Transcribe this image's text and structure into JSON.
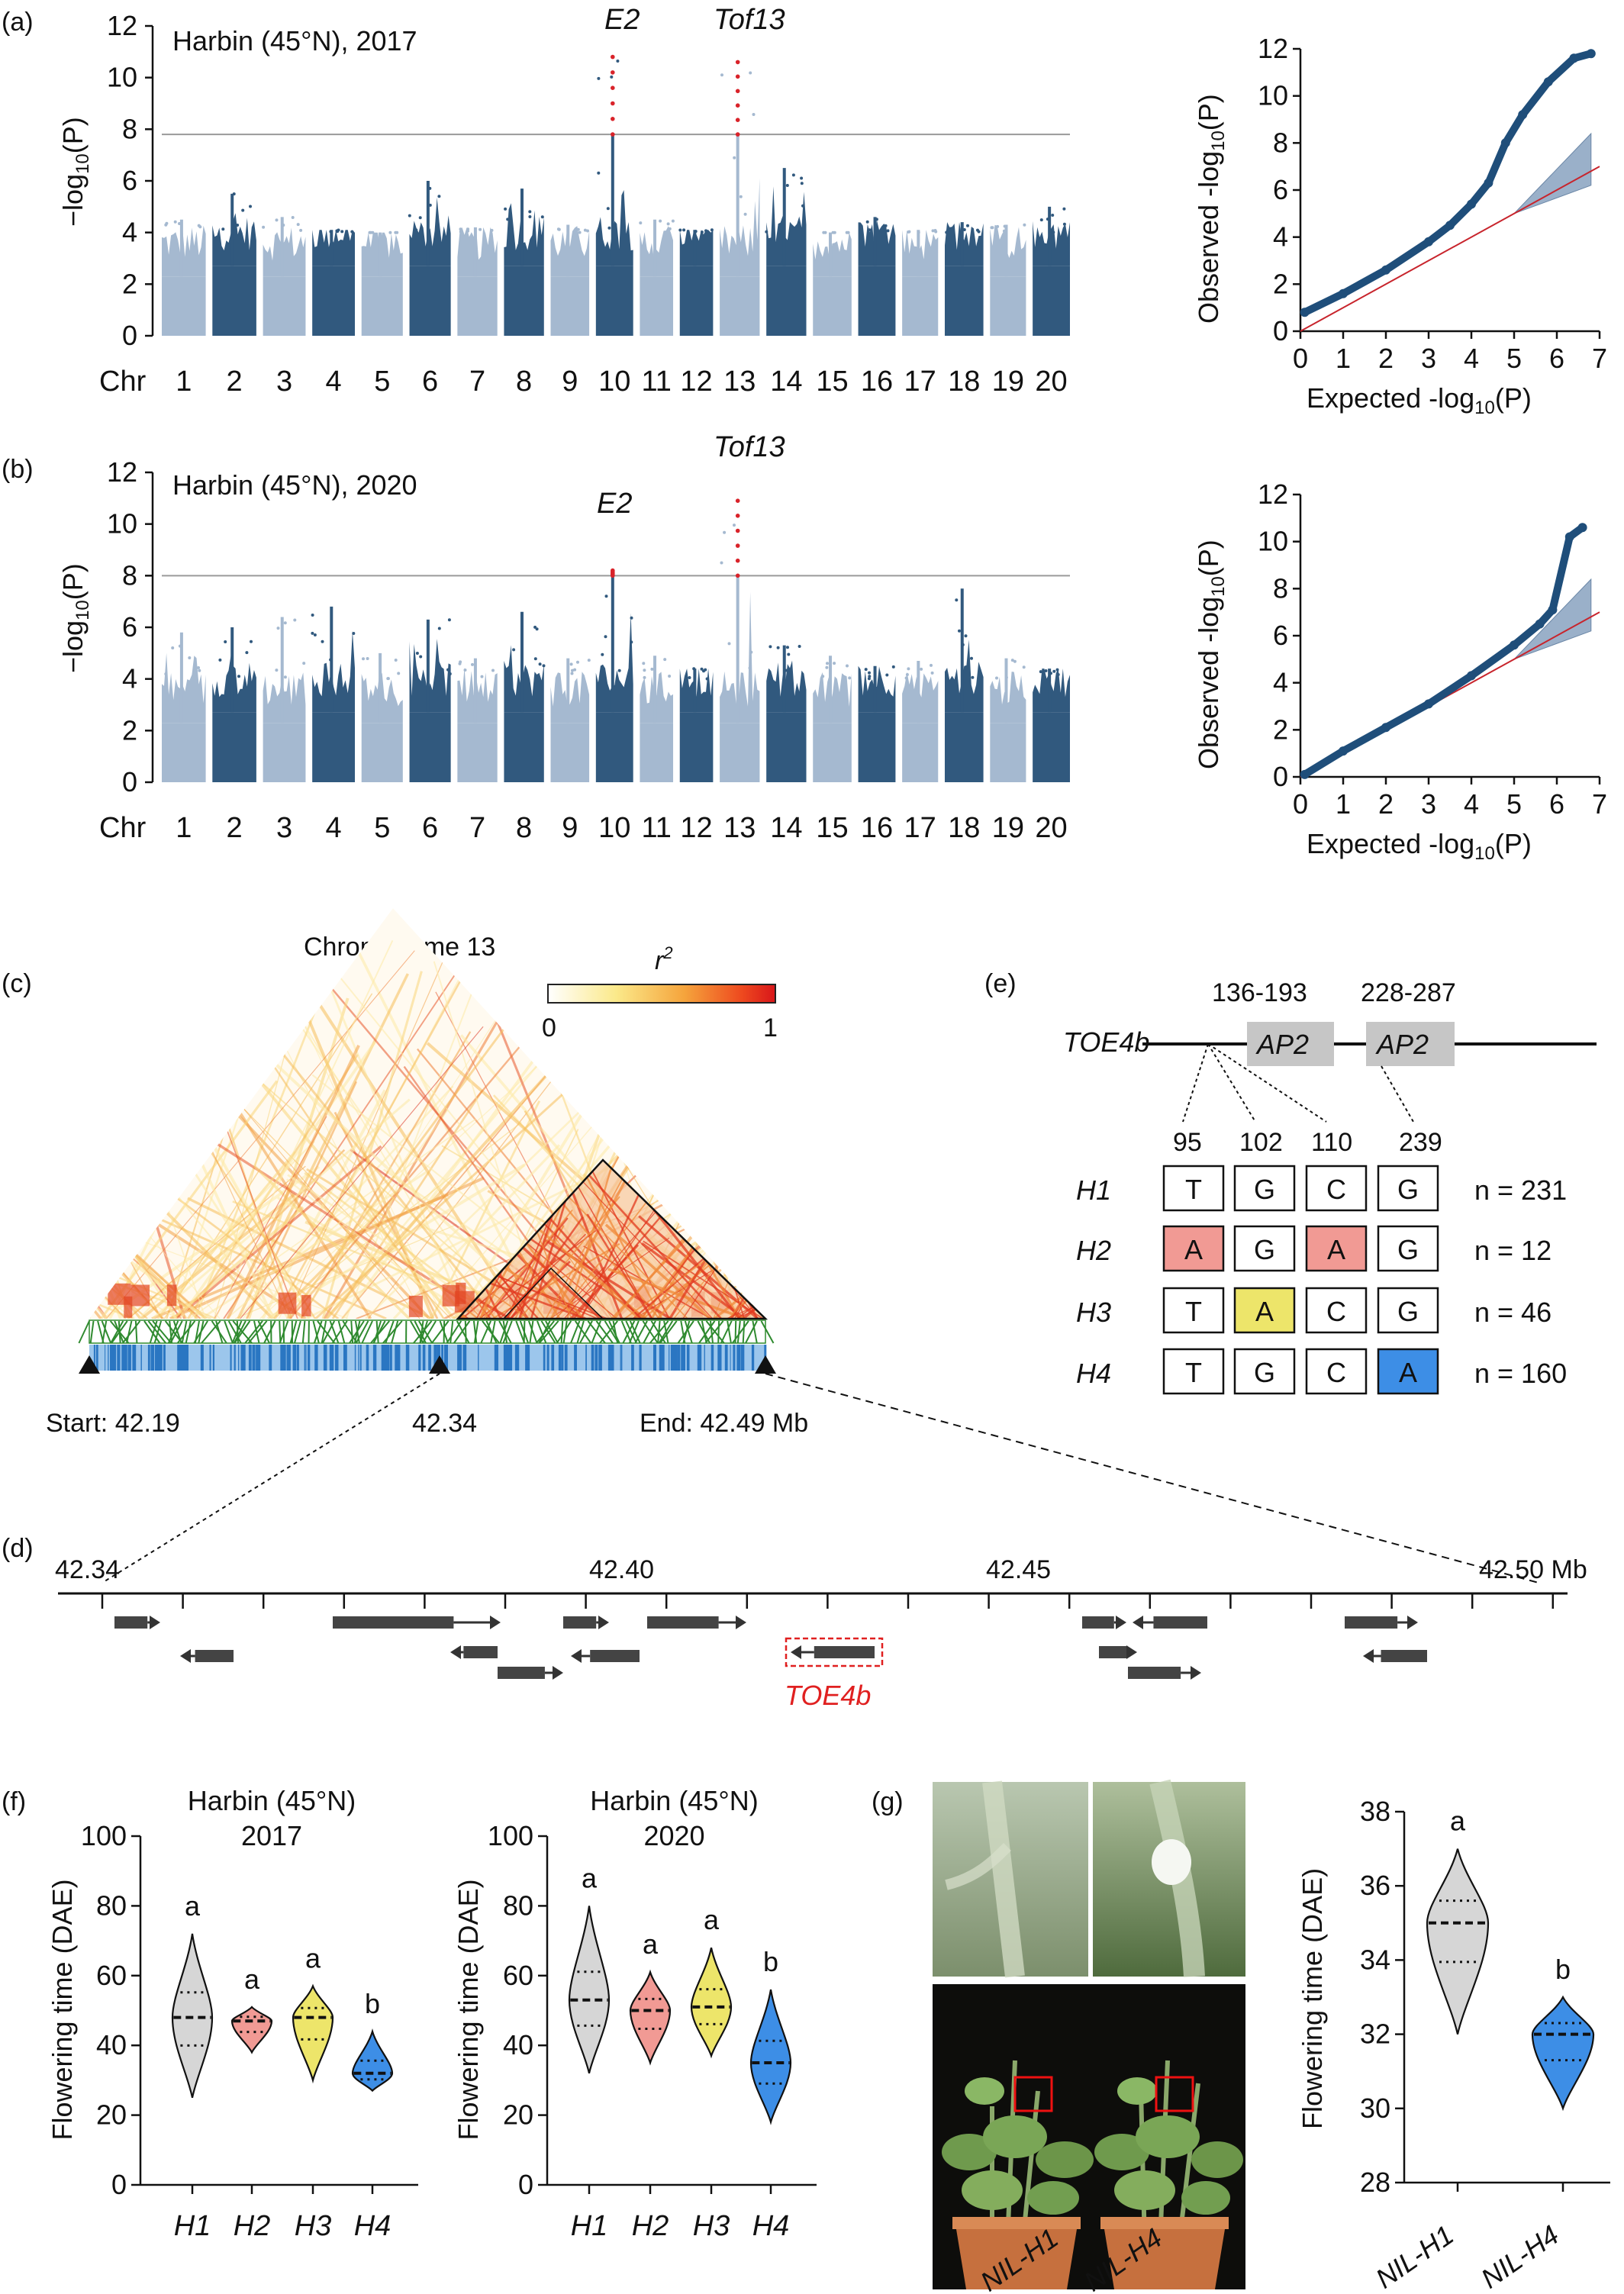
{
  "panels": {
    "a": {
      "label": "(a)",
      "title": "Harbin (45°N), 2017",
      "loci": [
        {
          "name": "E2",
          "chr": "10"
        },
        {
          "name": "Tof13",
          "chr": "13"
        }
      ],
      "threshold": 7.8,
      "chr_peaks": [
        4.5,
        5.5,
        4.6,
        4.1,
        4.0,
        6.0,
        4.2,
        5.7,
        4.3,
        10.8,
        4.5,
        4.1,
        10.6,
        6.5,
        4.0,
        4.6,
        4.1,
        4.4,
        4.3,
        5.0
      ]
    },
    "b": {
      "label": "(b)",
      "title": "Harbin (45°N), 2020",
      "loci": [
        {
          "name": "E2",
          "chr": "10"
        },
        {
          "name": "Tof13",
          "chr": "13"
        }
      ],
      "threshold": 8.0,
      "chr_peaks": [
        5.8,
        6.0,
        6.4,
        6.8,
        5.0,
        6.3,
        4.8,
        6.6,
        4.8,
        8.2,
        4.9,
        4.4,
        10.9,
        5.3,
        4.9,
        4.5,
        4.7,
        7.5,
        4.8,
        4.4
      ]
    },
    "manhattan_axes": {
      "ylabel_main": "−log",
      "ylabel_sub": "10",
      "ylabel_end": "(P)",
      "yticks": [
        "0",
        "2",
        "4",
        "6",
        "8",
        "10",
        "12"
      ],
      "chr_title": "Chr",
      "chromosomes": [
        "1",
        "2",
        "3",
        "4",
        "5",
        "6",
        "7",
        "8",
        "9",
        "10",
        "11",
        "12",
        "13",
        "14",
        "15",
        "16",
        "17",
        "18",
        "19",
        "20"
      ]
    },
    "qq_axes": {
      "ylabel": "Observed -log",
      "xlabel": "Expected -log",
      "sub": "10",
      "end": "(P)",
      "xticks": [
        "0",
        "1",
        "2",
        "3",
        "4",
        "5",
        "6",
        "7"
      ],
      "yticks": [
        "0",
        "2",
        "4",
        "6",
        "8",
        "10",
        "12"
      ]
    },
    "c": {
      "label": "(c)",
      "title": "Chromosome 13",
      "legend_title": "r",
      "legend_sup": "2",
      "legend_min": "0",
      "legend_max": "1",
      "start": "Start: 42.19",
      "middle": "42.34",
      "end": "End: 42.49 Mb"
    },
    "d": {
      "label": "(d)",
      "ticks": [
        "42.34",
        "42.40",
        "42.45",
        "42.50 Mb"
      ],
      "gene": "TOE4b"
    },
    "e": {
      "label": "(e)",
      "gene": "TOE4b",
      "domains": [
        {
          "name": "AP2",
          "range": "136-193"
        },
        {
          "name": "AP2",
          "range": "228-287"
        }
      ],
      "positions": [
        "95",
        "102",
        "110",
        "239"
      ],
      "haplotypes": [
        {
          "name": "H1",
          "alleles": [
            "T",
            "G",
            "C",
            "G"
          ],
          "count": "n = 231"
        },
        {
          "name": "H2",
          "alleles": [
            "A",
            "G",
            "A",
            "G"
          ],
          "count": "n = 12"
        },
        {
          "name": "H3",
          "alleles": [
            "T",
            "A",
            "C",
            "G"
          ],
          "count": "n = 46"
        },
        {
          "name": "H4",
          "alleles": [
            "T",
            "G",
            "C",
            "A"
          ],
          "count": "n = 160"
        }
      ]
    },
    "f": {
      "label": "(f)",
      "ylabel": "Flowering time (DAE)",
      "yticks": [
        "0",
        "20",
        "40",
        "60",
        "80",
        "100"
      ],
      "plots": [
        {
          "title1": "Harbin (45°N)",
          "title2": "2017",
          "groups": [
            {
              "name": "H1",
              "median": 48,
              "min": 25,
              "max": 72,
              "letter": "a"
            },
            {
              "name": "H2",
              "median": 47,
              "min": 38,
              "max": 51,
              "letter": "a"
            },
            {
              "name": "H3",
              "median": 48,
              "min": 30,
              "max": 57,
              "letter": "a"
            },
            {
              "name": "H4",
              "median": 32,
              "min": 27,
              "max": 44,
              "letter": "b"
            }
          ]
        },
        {
          "title1": "Harbin (45°N)",
          "title2": "2020",
          "groups": [
            {
              "name": "H1",
              "median": 53,
              "min": 32,
              "max": 80,
              "letter": "a"
            },
            {
              "name": "H2",
              "median": 50,
              "min": 35,
              "max": 61,
              "letter": "a"
            },
            {
              "name": "H3",
              "median": 51,
              "min": 37,
              "max": 68,
              "letter": "a"
            },
            {
              "name": "H4",
              "median": 35,
              "min": 18,
              "max": 56,
              "letter": "b"
            }
          ]
        }
      ]
    },
    "g": {
      "label": "(g)",
      "ylabel": "Flowering time (DAE)",
      "yticks": [
        "28",
        "30",
        "32",
        "34",
        "36",
        "38"
      ],
      "groups": [
        {
          "name": "NIL-H1",
          "median": 35,
          "min": 32,
          "max": 37,
          "letter": "a"
        },
        {
          "name": "NIL-H4",
          "median": 32,
          "min": 30,
          "max": 33,
          "letter": "b"
        }
      ]
    }
  },
  "colors": {
    "light_blue": "#a5b9d0",
    "dark_blue": "#31597e",
    "qq_dot": "#1f4e7a",
    "hit_red": "#d9232a",
    "h2_pink": "#f19a94",
    "h3_yellow": "#ede56a",
    "h4_blue": "#3d8ee6",
    "grey_violin": "#d6d6d6",
    "ap2_box": "#c6c6c6",
    "green_band": "#2f8a2f",
    "blue_band": "#2a76c2"
  },
  "chart_data": [
    {
      "type": "scatter",
      "title": "Harbin (45°N), 2017",
      "xlabel": "Chr",
      "ylabel": "−log10(P)",
      "ylim": [
        0,
        12
      ],
      "categories": [
        "1",
        "2",
        "3",
        "4",
        "5",
        "6",
        "7",
        "8",
        "9",
        "10",
        "11",
        "12",
        "13",
        "14",
        "15",
        "16",
        "17",
        "18",
        "19",
        "20"
      ],
      "values": [
        4.5,
        5.5,
        4.6,
        4.1,
        4.0,
        6.0,
        4.2,
        5.7,
        4.3,
        10.8,
        4.5,
        4.1,
        10.6,
        6.5,
        4.0,
        4.6,
        4.1,
        4.4,
        4.3,
        5.0
      ]
    },
    {
      "type": "scatter",
      "title": "Harbin (45°N), 2020",
      "xlabel": "Chr",
      "ylabel": "−log10(P)",
      "ylim": [
        0,
        12
      ],
      "categories": [
        "1",
        "2",
        "3",
        "4",
        "5",
        "6",
        "7",
        "8",
        "9",
        "10",
        "11",
        "12",
        "13",
        "14",
        "15",
        "16",
        "17",
        "18",
        "19",
        "20"
      ],
      "values": [
        5.8,
        6.0,
        6.4,
        6.8,
        5.0,
        6.3,
        4.8,
        6.6,
        4.8,
        8.2,
        4.9,
        4.4,
        10.9,
        5.3,
        4.9,
        4.5,
        4.7,
        7.5,
        4.8,
        4.4
      ]
    },
    {
      "type": "scatter",
      "xlabel": "Expected -log10(P)",
      "ylabel": "Observed -log10(P)",
      "xlim": [
        0,
        7
      ],
      "ylim": [
        0,
        12
      ],
      "series": [
        {
          "x": [
            0.1,
            1,
            2,
            3,
            3.5,
            4,
            4.4,
            4.8,
            5.2,
            5.8,
            6.4,
            6.8
          ],
          "y": [
            0.8,
            1.6,
            2.6,
            3.8,
            4.5,
            5.4,
            6.3,
            8.0,
            9.2,
            10.6,
            11.6,
            11.8
          ]
        }
      ]
    },
    {
      "type": "scatter",
      "xlabel": "Expected -log10(P)",
      "ylabel": "Observed -log10(P)",
      "xlim": [
        0,
        7
      ],
      "ylim": [
        0,
        12
      ],
      "series": [
        {
          "x": [
            0.1,
            1,
            2,
            3,
            4,
            5,
            5.6,
            5.9,
            6.3,
            6.6
          ],
          "y": [
            0.1,
            1.1,
            2.1,
            3.1,
            4.3,
            5.6,
            6.5,
            7.1,
            10.2,
            10.6
          ]
        }
      ]
    }
  ]
}
